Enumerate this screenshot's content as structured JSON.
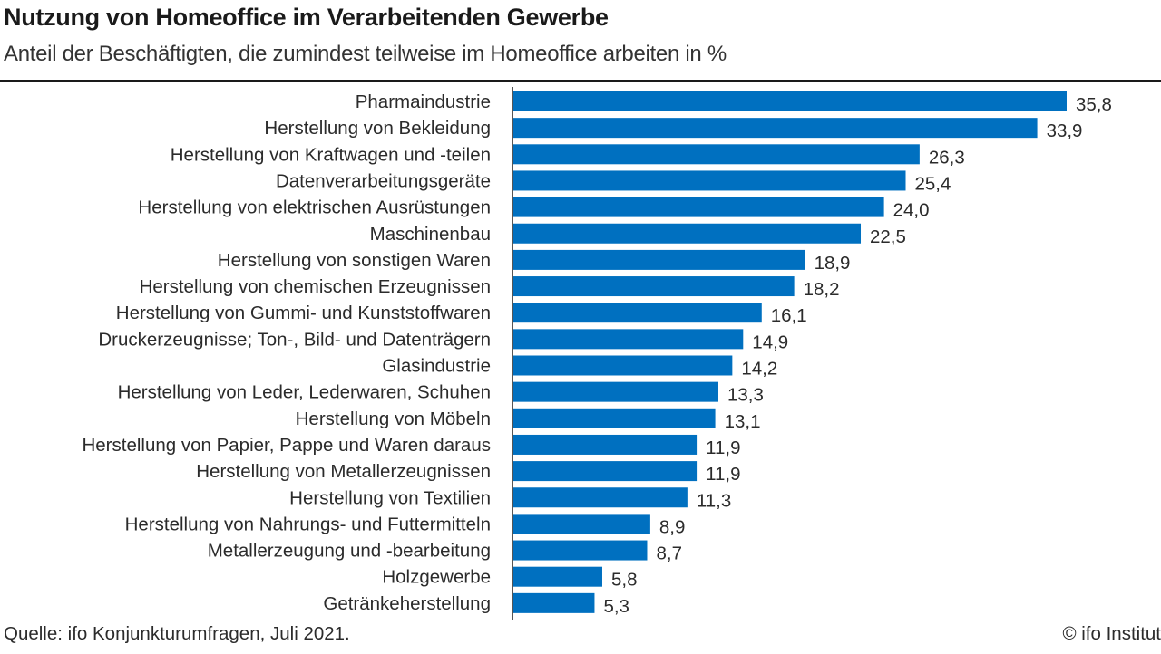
{
  "chart_data": {
    "type": "bar",
    "orientation": "horizontal",
    "title": "Nutzung von Homeoffice im Verarbeitenden Gewerbe",
    "subtitle": "Anteil der Beschäftigten, die zumindest teilweise im Homeoffice arbeiten in %",
    "xlabel": "",
    "ylabel": "",
    "xlim": [
      0,
      35.8
    ],
    "grid": false,
    "legend": "none",
    "bar_color": "#0070C0",
    "decimal_separator": ",",
    "categories": [
      "Pharmaindustrie",
      "Herstellung von Bekleidung",
      "Herstellung von Kraftwagen und -teilen",
      "Datenverarbeitungsgeräte",
      "Herstellung von elektrischen Ausrüstungen",
      "Maschinenbau",
      "Herstellung von sonstigen Waren",
      "Herstellung von chemischen Erzeugnissen",
      "Herstellung von Gummi- und Kunststoffwaren",
      "Druckerzeugnisse; Ton-, Bild- und Datenträgern",
      "Glasindustrie",
      "Herstellung von Leder, Lederwaren, Schuhen",
      "Herstellung von Möbeln",
      "Herstellung von Papier, Pappe und Waren daraus",
      "Herstellung von Metallerzeugnissen",
      "Herstellung von Textilien",
      "Herstellung von Nahrungs- und Futtermitteln",
      "Metallerzeugung und -bearbeitung",
      "Holzgewerbe",
      "Getränkeherstellung"
    ],
    "values": [
      35.8,
      33.9,
      26.3,
      25.4,
      24.0,
      22.5,
      18.9,
      18.2,
      16.1,
      14.9,
      14.2,
      13.3,
      13.1,
      11.9,
      11.9,
      11.3,
      8.9,
      8.7,
      5.8,
      5.3
    ],
    "value_labels": [
      "35,8",
      "33,9",
      "26,3",
      "25,4",
      "24,0",
      "22,5",
      "18,9",
      "18,2",
      "16,1",
      "14,9",
      "14,2",
      "13,3",
      "13,1",
      "11,9",
      "11,9",
      "11,3",
      "8,9",
      "8,7",
      "5,8",
      "5,3"
    ]
  },
  "footer": {
    "source": "Quelle: ifo Konjunkturumfragen, Juli 2021.",
    "copyright": "© ifo Institut"
  }
}
